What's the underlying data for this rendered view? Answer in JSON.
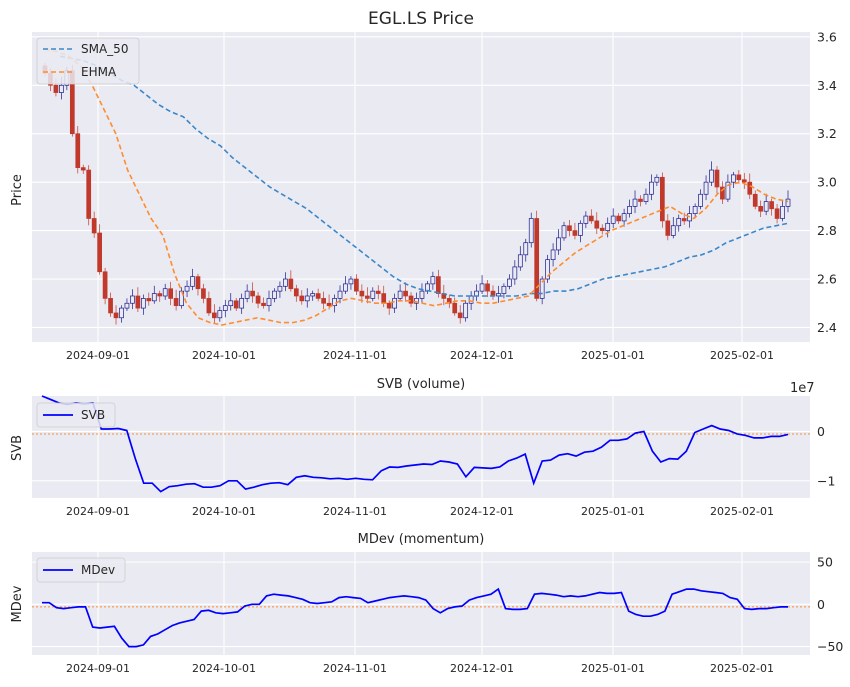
{
  "chart_data": [
    {
      "type": "candlestick",
      "title": "EGL.LS Price",
      "ylabel": "Price",
      "ylim": [
        2.34,
        3.62
      ],
      "y_axis_side": "right",
      "y_ticks": [
        2.4,
        2.6,
        2.8,
        3.0,
        3.2,
        3.4,
        3.6
      ],
      "y_tick_labels": [
        "2.4",
        "2.6",
        "2.8",
        "3.0",
        "3.2",
        "3.4",
        "3.6"
      ],
      "x_tick_labels": [
        "2024-09-01",
        "2024-10-01",
        "2024-11-01",
        "2024-12-01",
        "2025-01-01",
        "2025-02-01"
      ],
      "legend": {
        "placement": "top-left",
        "entries": [
          "SMA_50",
          "EHMA"
        ]
      },
      "grid": true,
      "colors": {
        "up": "#1a1a8c",
        "down": "#c0392b",
        "sma": "#3a87c9",
        "ehma": "#ff8c2e"
      },
      "candles_close_start": 3.45,
      "candles_close_path": [
        3.45,
        3.4,
        3.37,
        3.4,
        3.46,
        3.2,
        3.06,
        3.05,
        2.85,
        2.79,
        2.63,
        2.52,
        2.46,
        2.44,
        2.48,
        2.5,
        2.53,
        2.48,
        2.52,
        2.51,
        2.54,
        2.53,
        2.56,
        2.52,
        2.49,
        2.55,
        2.57,
        2.61,
        2.56,
        2.52,
        2.46,
        2.44,
        2.47,
        2.49,
        2.51,
        2.48,
        2.52,
        2.55,
        2.53,
        2.5,
        2.49,
        2.52,
        2.55,
        2.57,
        2.6,
        2.56,
        2.53,
        2.51,
        2.53,
        2.54,
        2.52,
        2.5,
        2.49,
        2.52,
        2.55,
        2.58,
        2.6,
        2.55,
        2.53,
        2.52,
        2.55,
        2.54,
        2.5,
        2.48,
        2.52,
        2.55,
        2.53,
        2.5,
        2.52,
        2.55,
        2.58,
        2.61,
        2.54,
        2.52,
        2.5,
        2.46,
        2.44,
        2.5,
        2.53,
        2.55,
        2.58,
        2.55,
        2.53,
        2.54,
        2.57,
        2.6,
        2.65,
        2.7,
        2.75,
        2.85,
        2.52,
        2.6,
        2.68,
        2.72,
        2.77,
        2.82,
        2.8,
        2.78,
        2.83,
        2.86,
        2.84,
        2.81,
        2.8,
        2.83,
        2.86,
        2.84,
        2.87,
        2.9,
        2.93,
        2.92,
        2.95,
        3.0,
        3.02,
        2.84,
        2.78,
        2.82,
        2.85,
        2.84,
        2.87,
        2.9,
        2.95,
        3.0,
        3.05,
        2.98,
        2.93,
        3.0,
        3.03,
        3.01,
        3.0,
        2.95,
        2.9,
        2.88,
        2.92,
        2.89,
        2.85,
        2.9,
        2.93
      ],
      "sma_50": [
        3.52,
        3.51,
        3.5,
        3.48,
        3.45,
        3.42,
        3.4,
        3.36,
        3.32,
        3.29,
        3.27,
        3.22,
        3.18,
        3.15,
        3.1,
        3.06,
        3.02,
        2.98,
        2.95,
        2.92,
        2.89,
        2.85,
        2.81,
        2.77,
        2.73,
        2.69,
        2.65,
        2.61,
        2.58,
        2.56,
        2.55,
        2.54,
        2.53,
        2.53,
        2.53,
        2.53,
        2.53,
        2.53,
        2.54,
        2.54,
        2.55,
        2.55,
        2.56,
        2.58,
        2.6,
        2.61,
        2.62,
        2.63,
        2.64,
        2.65,
        2.67,
        2.69,
        2.7,
        2.72,
        2.75,
        2.77,
        2.79,
        2.81,
        2.82,
        2.83
      ],
      "ehma": [
        3.55,
        3.54,
        3.52,
        3.48,
        3.4,
        3.3,
        3.2,
        3.05,
        2.95,
        2.85,
        2.78,
        2.62,
        2.5,
        2.44,
        2.42,
        2.41,
        2.42,
        2.43,
        2.44,
        2.43,
        2.42,
        2.42,
        2.43,
        2.45,
        2.48,
        2.51,
        2.52,
        2.51,
        2.5,
        2.5,
        2.51,
        2.51,
        2.5,
        2.49,
        2.5,
        2.51,
        2.51,
        2.5,
        2.5,
        2.51,
        2.52,
        2.53,
        2.58,
        2.63,
        2.67,
        2.71,
        2.74,
        2.77,
        2.8,
        2.82,
        2.84,
        2.86,
        2.88,
        2.9,
        2.87,
        2.85,
        2.89,
        2.95,
        2.99,
        3.0,
        2.98,
        2.95,
        2.93,
        2.92
      ]
    },
    {
      "type": "line",
      "title": "SVB (volume)",
      "ylabel": "SVB",
      "ylim": [
        -1.35,
        0.72
      ],
      "y_axis_side": "right",
      "y_ticks": [
        0,
        -1
      ],
      "y_tick_labels": [
        "0",
        "−1"
      ],
      "offset_label": "1e7",
      "x_tick_labels": [
        "2024-09-01",
        "2024-10-01",
        "2024-11-01",
        "2024-12-01",
        "2025-01-01",
        "2025-02-01"
      ],
      "legend": {
        "placement": "top-left",
        "entries": [
          "SVB"
        ]
      },
      "grid": true,
      "reference_line": -0.05,
      "series": [
        {
          "name": "SVB",
          "color": "#0000ff",
          "values": [
            0.72,
            0.65,
            0.58,
            0.55,
            0.58,
            0.56,
            0.58,
            0.05,
            0.05,
            0.06,
            0.02,
            -0.55,
            -1.05,
            -1.05,
            -1.22,
            -1.12,
            -1.1,
            -1.07,
            -1.06,
            -1.13,
            -1.13,
            -1.1,
            -1.0,
            -1.0,
            -1.17,
            -1.13,
            -1.08,
            -1.05,
            -1.04,
            -1.08,
            -0.93,
            -0.9,
            -0.93,
            -0.94,
            -0.96,
            -0.95,
            -0.97,
            -0.95,
            -0.97,
            -0.98,
            -0.8,
            -0.72,
            -0.73,
            -0.7,
            -0.68,
            -0.66,
            -0.67,
            -0.6,
            -0.62,
            -0.66,
            -0.92,
            -0.73,
            -0.74,
            -0.75,
            -0.72,
            -0.6,
            -0.54,
            -0.46,
            -1.05,
            -0.6,
            -0.58,
            -0.48,
            -0.45,
            -0.5,
            -0.42,
            -0.4,
            -0.32,
            -0.18,
            -0.18,
            -0.15,
            -0.03,
            0.0,
            -0.4,
            -0.62,
            -0.55,
            -0.56,
            -0.4,
            -0.02,
            0.05,
            0.12,
            0.05,
            0.02,
            -0.05,
            -0.08,
            -0.13,
            -0.13,
            -0.1,
            -0.1,
            -0.06
          ]
        }
      ]
    },
    {
      "type": "line",
      "title": "MDev (momentum)",
      "ylabel": "MDev",
      "ylim": [
        -60,
        62
      ],
      "y_axis_side": "right",
      "y_ticks": [
        50,
        0,
        -50
      ],
      "y_tick_labels": [
        "50",
        "0",
        "−50"
      ],
      "x_tick_labels": [
        "2024-09-01",
        "2024-10-01",
        "2024-11-01",
        "2024-12-01",
        "2025-01-01",
        "2025-02-01"
      ],
      "legend": {
        "placement": "top-left",
        "entries": [
          "MDev"
        ]
      },
      "grid": true,
      "reference_line": -3,
      "series": [
        {
          "name": "MDev",
          "color": "#0000ff",
          "values": [
            2,
            2,
            -4,
            -5,
            -4,
            -3,
            -3,
            -27,
            -28,
            -27,
            -26,
            -40,
            -50,
            -50,
            -48,
            -38,
            -35,
            -30,
            -25,
            -22,
            -20,
            -18,
            -8,
            -7,
            -10,
            -11,
            -10,
            -9,
            -2,
            0,
            0,
            10,
            12,
            11,
            10,
            8,
            6,
            2,
            1,
            2,
            3,
            8,
            9,
            8,
            7,
            2,
            4,
            6,
            8,
            9,
            10,
            9,
            8,
            5,
            -5,
            -10,
            -5,
            -3,
            -2,
            5,
            8,
            10,
            12,
            18,
            -5,
            -6,
            -6,
            -5,
            12,
            13,
            12,
            11,
            9,
            10,
            9,
            10,
            12,
            14,
            13,
            13,
            14,
            -8,
            -12,
            -14,
            -14,
            -12,
            -8,
            12,
            15,
            18,
            18,
            16,
            15,
            14,
            13,
            8,
            6,
            -5,
            -6,
            -5,
            -5,
            -4,
            -3,
            -3
          ]
        }
      ]
    }
  ]
}
